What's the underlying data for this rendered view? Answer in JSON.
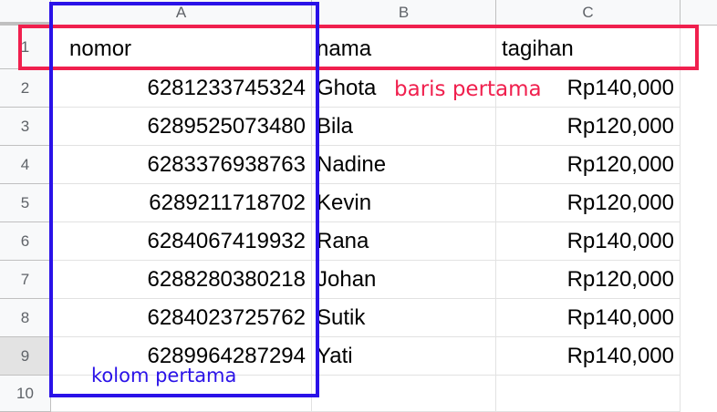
{
  "columns": [
    "A",
    "B",
    "C"
  ],
  "row_numbers": [
    "1",
    "2",
    "3",
    "4",
    "5",
    "6",
    "7",
    "8",
    "9",
    "10"
  ],
  "header": {
    "nomor": "nomor",
    "nama": "nama",
    "tagihan": "tagihan"
  },
  "rows": [
    {
      "nomor": "6281233745324",
      "nama": "Ghota",
      "tagihan": "Rp140,000"
    },
    {
      "nomor": "6289525073480",
      "nama": "Bila",
      "tagihan": "Rp120,000"
    },
    {
      "nomor": "6283376938763",
      "nama": "Nadine",
      "tagihan": "Rp120,000"
    },
    {
      "nomor": "6289211718702",
      "nama": "Kevin",
      "tagihan": "Rp120,000"
    },
    {
      "nomor": "6284067419932",
      "nama": "Rana",
      "tagihan": "Rp140,000"
    },
    {
      "nomor": "6288280380218",
      "nama": "Johan",
      "tagihan": "Rp120,000"
    },
    {
      "nomor": "6284023725762",
      "nama": "Sutik",
      "tagihan": "Rp140,000"
    },
    {
      "nomor": "6289964287294",
      "nama": "Yati",
      "tagihan": "Rp140,000"
    }
  ],
  "annotations": {
    "row_label": "baris pertama",
    "col_label": "kolom pertama"
  },
  "colors": {
    "row_box": "#f0204e",
    "col_box": "#2a12e8"
  }
}
